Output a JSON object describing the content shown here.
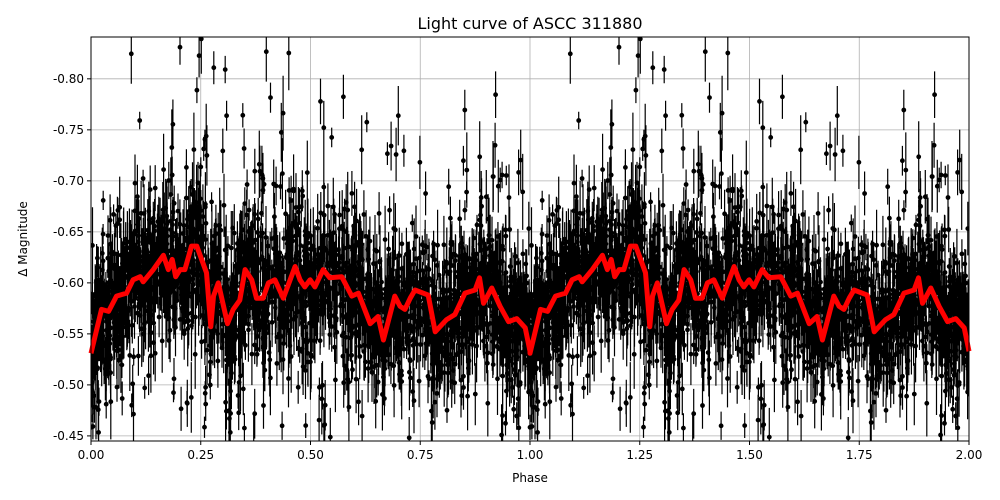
{
  "chart_data": {
    "type": "scatter",
    "title": "Light curve of ASCC 311880",
    "xlabel": "Phase",
    "ylabel": "Δ Magnitude",
    "xlim": [
      0.0,
      2.0
    ],
    "ylim": [
      -0.445,
      -0.841
    ],
    "y_inverted": true,
    "grid": true,
    "xticks": [
      "0.00",
      "0.25",
      "0.50",
      "0.75",
      "1.00",
      "1.25",
      "1.50",
      "1.75",
      "2.00"
    ],
    "yticks": [
      "-0.45",
      "-0.50",
      "-0.55",
      "-0.60",
      "-0.65",
      "-0.70",
      "-0.75",
      "-0.80"
    ],
    "series": [
      {
        "kind": "points with error bars",
        "color": "#000000",
        "note_visible": "dense black points, phase-folded, repeated over two cycles"
      },
      {
        "kind": "binned model line",
        "color": "#ff0000",
        "period_repeats": true,
        "phase": [
          0.0,
          0.024,
          0.04,
          0.058,
          0.081,
          0.096,
          0.112,
          0.119,
          0.142,
          0.165,
          0.176,
          0.185,
          0.193,
          0.203,
          0.214,
          0.229,
          0.241,
          0.252,
          0.263,
          0.273,
          0.279,
          0.29,
          0.311,
          0.324,
          0.339,
          0.351,
          0.366,
          0.377,
          0.392,
          0.404,
          0.419,
          0.438,
          0.465,
          0.476,
          0.487,
          0.499,
          0.51,
          0.529,
          0.544,
          0.571,
          0.594,
          0.609,
          0.636,
          0.654,
          0.666,
          0.692,
          0.704,
          0.715,
          0.727,
          0.738,
          0.768,
          0.784,
          0.81,
          0.829,
          0.852,
          0.875,
          0.885,
          0.894,
          0.913,
          0.932,
          0.951,
          0.97,
          0.989,
          1.0
        ],
        "magnitude": [
          -0.531,
          -0.574,
          -0.572,
          -0.587,
          -0.59,
          -0.603,
          -0.606,
          -0.601,
          -0.613,
          -0.627,
          -0.613,
          -0.623,
          -0.606,
          -0.613,
          -0.613,
          -0.636,
          -0.636,
          -0.623,
          -0.61,
          -0.557,
          -0.587,
          -0.6,
          -0.56,
          -0.574,
          -0.583,
          -0.613,
          -0.603,
          -0.585,
          -0.585,
          -0.6,
          -0.603,
          -0.585,
          -0.616,
          -0.603,
          -0.596,
          -0.603,
          -0.596,
          -0.613,
          -0.605,
          -0.606,
          -0.587,
          -0.59,
          -0.56,
          -0.567,
          -0.544,
          -0.587,
          -0.577,
          -0.574,
          -0.585,
          -0.593,
          -0.588,
          -0.552,
          -0.564,
          -0.569,
          -0.59,
          -0.593,
          -0.605,
          -0.58,
          -0.595,
          -0.577,
          -0.562,
          -0.565,
          -0.556,
          -0.533
        ]
      }
    ]
  }
}
